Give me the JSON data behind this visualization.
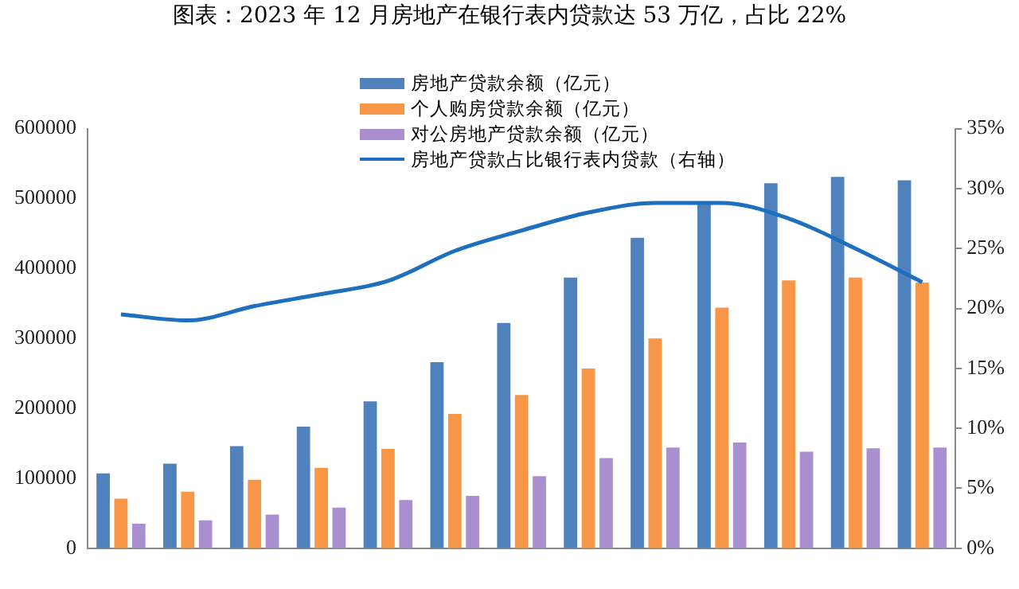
{
  "chart_data": {
    "type": "bar",
    "title": "图表：2023 年 12 月房地产在银行表内贷款达 53 万亿，占比 22%",
    "categories": [
      null,
      null,
      null,
      null,
      null,
      null,
      null,
      null,
      null,
      null,
      null,
      null,
      null
    ],
    "series": [
      {
        "name": "房地产贷款余额（亿元）",
        "color": "#4f81bd",
        "values": [
          107000,
          121000,
          146000,
          174000,
          210000,
          266000,
          322000,
          387000,
          444000,
          495000,
          522000,
          531000,
          526000
        ]
      },
      {
        "name": "个人购房贷款余额（亿元）",
        "color": "#f79646",
        "values": [
          71000,
          81000,
          98000,
          115000,
          142000,
          192000,
          219000,
          257000,
          300000,
          344000,
          383000,
          387000,
          380000
        ]
      },
      {
        "name": "对公房地产贷款余额（亿元）",
        "color": "#a98fd0",
        "values": [
          35000,
          40000,
          48000,
          58000,
          69000,
          75000,
          103000,
          129000,
          144000,
          151000,
          138000,
          143000,
          144000
        ]
      },
      {
        "name": "房地产贷款占比银行表内贷款（右轴）",
        "type": "line",
        "axis": "y2",
        "color": "#1f6fbf",
        "values": [
          19.5,
          19.0,
          20.2,
          21.2,
          22.3,
          24.8,
          26.5,
          28.0,
          28.8,
          28.8,
          27.5,
          25.0,
          22.2
        ]
      }
    ],
    "ylim": [
      0,
      600000
    ],
    "yticks": [
      0,
      100000,
      200000,
      300000,
      400000,
      500000,
      600000
    ],
    "y2lim": [
      0,
      35
    ],
    "y2ticks": [
      {
        "value": 0,
        "label": "0%"
      },
      {
        "value": 5,
        "label": "5%"
      },
      {
        "value": 10,
        "label": "10%"
      },
      {
        "value": 15,
        "label": "15%"
      },
      {
        "value": 20,
        "label": "20%"
      },
      {
        "value": 25,
        "label": "25%"
      },
      {
        "value": 30,
        "label": "30%"
      },
      {
        "value": 35,
        "label": "35%"
      }
    ],
    "grid": false,
    "legend": "top",
    "marker": "none"
  }
}
